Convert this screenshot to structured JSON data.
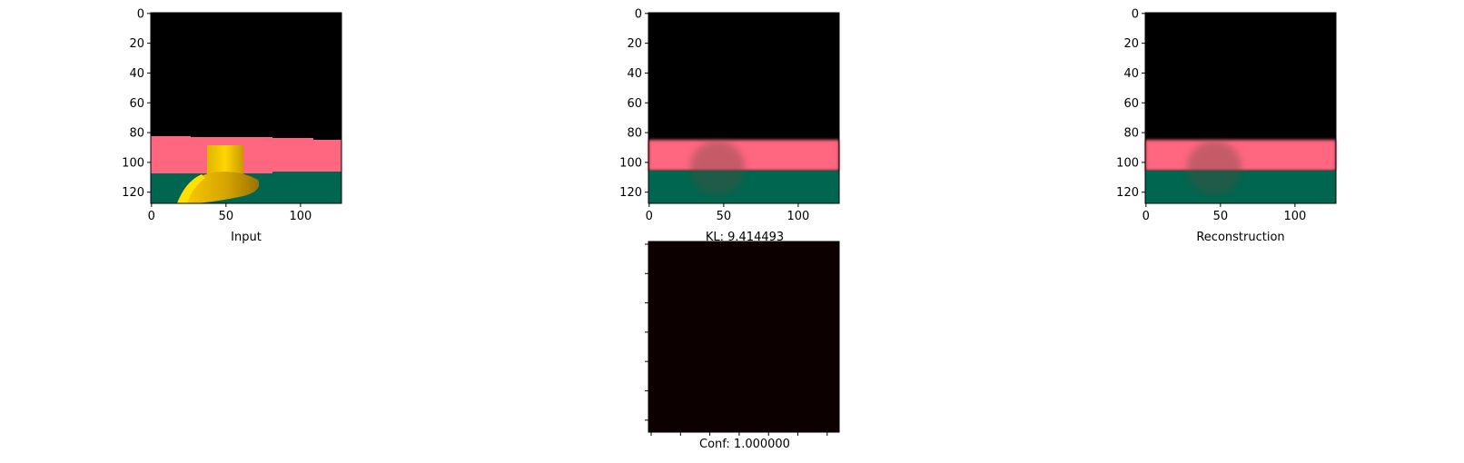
{
  "chart_data": [
    {
      "type": "image",
      "xlabel": "Input",
      "x_ticks": [
        0,
        50,
        100
      ],
      "y_ticks": [
        0,
        20,
        40,
        60,
        80,
        100,
        120
      ],
      "xlim": [
        0,
        128
      ],
      "ylim": [
        128,
        0
      ],
      "bands": [
        {
          "color": "#000000",
          "y_range": [
            0,
            83
          ]
        },
        {
          "color": "#ff6680",
          "y_range": [
            83,
            107
          ]
        },
        {
          "color": "#006650",
          "y_range": [
            107,
            128
          ]
        }
      ]
    },
    {
      "type": "image",
      "xlabel": "KL: 9.414493",
      "x_ticks": [
        0,
        50,
        100
      ],
      "y_ticks": [
        0,
        20,
        40,
        60,
        80,
        100,
        120
      ],
      "xlim": [
        0,
        128
      ],
      "ylim": [
        128,
        0
      ],
      "bands": [
        {
          "color": "#000000",
          "y_range": [
            0,
            85
          ]
        },
        {
          "color": "#ff6680",
          "y_range": [
            85,
            106
          ]
        },
        {
          "color": "#006650",
          "y_range": [
            106,
            128
          ]
        }
      ]
    },
    {
      "type": "image",
      "xlabel": "Reconstruction",
      "x_ticks": [
        0,
        50,
        100
      ],
      "y_ticks": [
        0,
        20,
        40,
        60,
        80,
        100,
        120
      ],
      "xlim": [
        0,
        128
      ],
      "ylim": [
        128,
        0
      ],
      "bands": [
        {
          "color": "#000000",
          "y_range": [
            0,
            85
          ]
        },
        {
          "color": "#ff6680",
          "y_range": [
            85,
            106
          ]
        },
        {
          "color": "#006650",
          "y_range": [
            106,
            128
          ]
        }
      ]
    },
    {
      "type": "heatmap",
      "xlabel": "Conf: 1.000000",
      "fill_color": "#0d0000"
    }
  ]
}
